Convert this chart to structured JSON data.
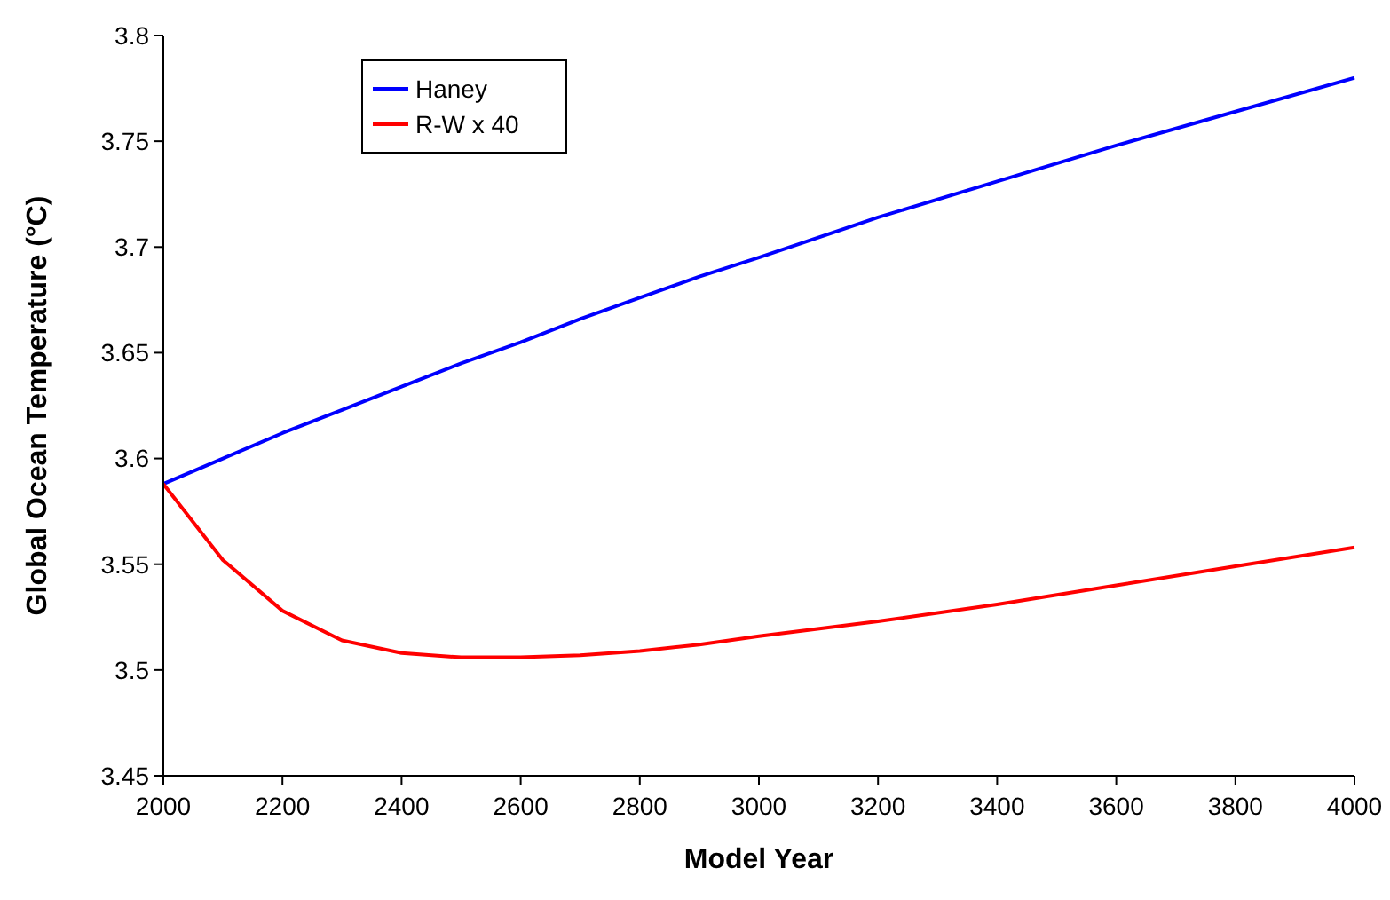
{
  "chart_data": {
    "type": "line",
    "xlabel": "Model Year",
    "ylabel": "Global Ocean Temperature (°C)",
    "xlim": [
      2000,
      4000
    ],
    "xticks": [
      2000,
      2200,
      2400,
      2600,
      2800,
      3000,
      3200,
      3400,
      3600,
      3800,
      4000
    ],
    "ylim": [
      3.45,
      3.8
    ],
    "yticks": [
      3.45,
      3.5,
      3.55,
      3.6,
      3.65,
      3.7,
      3.75,
      3.8
    ],
    "grid": false,
    "legend": "top left",
    "marker": "none",
    "line_style": "solid",
    "x": [
      2000,
      2100,
      2200,
      2300,
      2400,
      2500,
      2600,
      2700,
      2800,
      2900,
      3000,
      3200,
      3400,
      3600,
      3800,
      4000
    ],
    "series": [
      {
        "name": "Haney",
        "color": "#0000ff",
        "values": [
          3.588,
          3.6,
          3.612,
          3.623,
          3.634,
          3.645,
          3.655,
          3.666,
          3.676,
          3.686,
          3.695,
          3.714,
          3.731,
          3.748,
          3.764,
          3.78
        ]
      },
      {
        "name": "R-W x 40",
        "color": "#ff0000",
        "values": [
          3.588,
          3.552,
          3.528,
          3.514,
          3.508,
          3.506,
          3.506,
          3.507,
          3.509,
          3.512,
          3.516,
          3.523,
          3.531,
          3.54,
          3.549,
          3.558
        ]
      }
    ]
  }
}
